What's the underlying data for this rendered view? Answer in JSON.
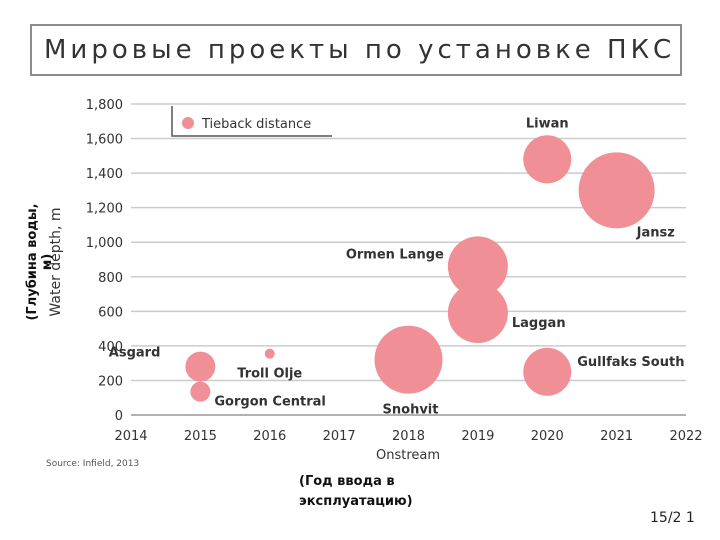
{
  "slide": {
    "title": "Мировые проекты по установке ПКС",
    "ylabel_ru": "(Глубина воды,\nм)",
    "xlabel_ru": "(Год ввода в эксплуатацию)",
    "page_number": "15/2 1"
  },
  "colors": {
    "bubble": "#f08f96",
    "grid": "#cccccc",
    "axis_text": "#333333"
  },
  "chart_data": {
    "type": "scatter",
    "xlabel": "Onstream",
    "ylabel": "Water depth, m",
    "xlim": [
      2014,
      2022
    ],
    "ylim": [
      0,
      1800
    ],
    "xticks": [
      2014,
      2015,
      2016,
      2017,
      2018,
      2019,
      2020,
      2021,
      2022
    ],
    "yticks": [
      0,
      200,
      400,
      600,
      800,
      1000,
      1200,
      1400,
      1600,
      1800
    ],
    "ytick_labels": [
      "0",
      "200",
      "400",
      "600",
      "800",
      "1,000",
      "1,200",
      "1,400",
      "1,600",
      "1,800"
    ],
    "grid": "horizontal",
    "legend": {
      "entries": [
        "Tieback distance"
      ],
      "placement": "top-left"
    },
    "source": "Source: Infield, 2013",
    "points": [
      {
        "label": "Asgard",
        "x": 2015,
        "y": 280,
        "size": 15
      },
      {
        "label": "Gorgon Central",
        "x": 2015,
        "y": 135,
        "size": 10
      },
      {
        "label": "Troll Olje",
        "x": 2016,
        "y": 355,
        "size": 5
      },
      {
        "label": "Snohvit",
        "x": 2018,
        "y": 320,
        "size": 34
      },
      {
        "label": "Ormen Lange",
        "x": 2019,
        "y": 860,
        "size": 30
      },
      {
        "label": "Laggan",
        "x": 2019,
        "y": 590,
        "size": 30
      },
      {
        "label": "Liwan",
        "x": 2020,
        "y": 1480,
        "size": 24
      },
      {
        "label": "Gullfaks South",
        "x": 2020,
        "y": 250,
        "size": 24
      },
      {
        "label": "Jansz",
        "x": 2021,
        "y": 1300,
        "size": 38
      }
    ]
  }
}
